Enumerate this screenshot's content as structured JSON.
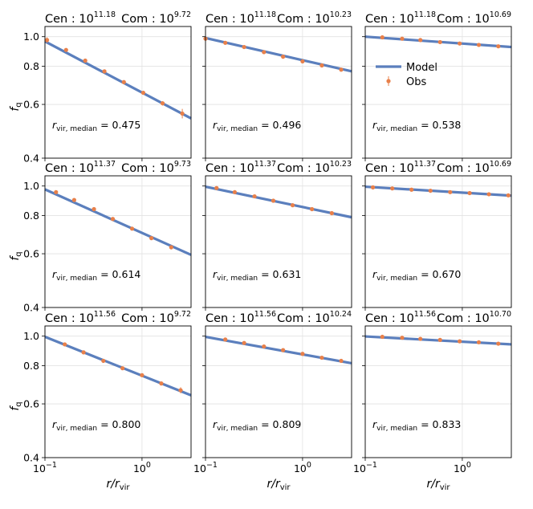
{
  "chart_data": {
    "type": "scatter",
    "layout": {
      "rows": 3,
      "cols": 3
    },
    "xscale": "log",
    "yscale": "log",
    "xlim": [
      0.1,
      3.2
    ],
    "ylim": [
      0.4,
      1.08
    ],
    "xticks": [
      {
        "value": 0.1,
        "label": "10",
        "sup": "−1"
      },
      {
        "value": 1,
        "label": "10",
        "sup": "0"
      }
    ],
    "yticks": [
      {
        "value": 0.4,
        "label": "0.4"
      },
      {
        "value": 0.6,
        "label": "0.6"
      },
      {
        "value": 0.8,
        "label": "0.8"
      },
      {
        "value": 1.0,
        "label": "1.0"
      }
    ],
    "xlabel": {
      "main": "r/r",
      "sub": "vir"
    },
    "ylabel": {
      "main": "f",
      "sub": "q"
    },
    "colors": {
      "model": "#5b7fbd",
      "obs": "#e8804a"
    },
    "legend": {
      "position": "upper-right of top-right panel",
      "model_label": "Model",
      "obs_label": "Obs"
    },
    "panels": [
      {
        "cen_label": "Cen : 10",
        "cen_exp": "11.18",
        "com_label": "Com : 10",
        "com_exp": "9.72",
        "ann_label": "r",
        "ann_sub": "vir, median",
        "ann_value": " = 0.475",
        "model": [
          [
            0.1,
            0.965
          ],
          [
            3.2,
            0.54
          ]
        ],
        "obs": {
          "x": [
            0.105,
            0.165,
            0.26,
            0.41,
            0.65,
            1.03,
            1.63,
            2.6
          ],
          "y": [
            0.975,
            0.905,
            0.835,
            0.77,
            0.71,
            0.655,
            0.605,
            0.56
          ],
          "err": [
            0.02,
            0.01,
            0.01,
            0.01,
            0.01,
            0.01,
            0.01,
            0.02
          ]
        }
      },
      {
        "cen_label": "Cen : 10",
        "cen_exp": "11.18",
        "com_label": "Com : 10",
        "com_exp": "10.23",
        "ann_label": "r",
        "ann_sub": "vir, median",
        "ann_value": " = 0.496",
        "model": [
          [
            0.1,
            0.99
          ],
          [
            3.2,
            0.77
          ]
        ],
        "obs": {
          "x": [
            0.1,
            0.16,
            0.25,
            0.4,
            0.63,
            1.0,
            1.58,
            2.5
          ],
          "y": [
            0.985,
            0.955,
            0.925,
            0.89,
            0.86,
            0.83,
            0.805,
            0.78
          ],
          "err": [
            0.008,
            0.008,
            0.006,
            0.006,
            0.006,
            0.006,
            0.006,
            0.008
          ]
        }
      },
      {
        "cen_label": "Cen : 10",
        "cen_exp": "11.18",
        "com_label": "Com : 10",
        "com_exp": "10.69",
        "ann_label": "r",
        "ann_sub": "vir, median",
        "ann_value": " = 0.538",
        "model": [
          [
            0.1,
            1.0
          ],
          [
            3.2,
            0.925
          ]
        ],
        "obs": {
          "x": [
            0.15,
            0.24,
            0.37,
            0.59,
            0.94,
            1.48,
            2.35
          ],
          "y": [
            0.995,
            0.985,
            0.975,
            0.96,
            0.95,
            0.94,
            0.93
          ],
          "err": [
            0.006,
            0.005,
            0.005,
            0.005,
            0.005,
            0.005,
            0.006
          ]
        }
      },
      {
        "cen_label": "Cen : 10",
        "cen_exp": "11.37",
        "com_label": "Com : 10",
        "com_exp": "9.73",
        "ann_label": "r",
        "ann_sub": "vir, median",
        "ann_value": " = 0.614",
        "model": [
          [
            0.1,
            0.975
          ],
          [
            3.2,
            0.595
          ]
        ],
        "obs": {
          "x": [
            0.13,
            0.2,
            0.32,
            0.5,
            0.79,
            1.25,
            2.0
          ],
          "y": [
            0.955,
            0.9,
            0.84,
            0.78,
            0.725,
            0.675,
            0.63
          ],
          "err": [
            0.008,
            0.007,
            0.007,
            0.007,
            0.007,
            0.007,
            0.01
          ]
        }
      },
      {
        "cen_label": "Cen : 10",
        "cen_exp": "11.37",
        "com_label": "Com : 10",
        "com_exp": "10.23",
        "ann_label": "r",
        "ann_sub": "vir, median",
        "ann_value": " = 0.631",
        "model": [
          [
            0.1,
            0.995
          ],
          [
            3.2,
            0.79
          ]
        ],
        "obs": {
          "x": [
            0.13,
            0.2,
            0.32,
            0.5,
            0.79,
            1.25,
            2.0
          ],
          "y": [
            0.985,
            0.955,
            0.925,
            0.895,
            0.865,
            0.84,
            0.815
          ],
          "err": [
            0.006,
            0.005,
            0.005,
            0.005,
            0.005,
            0.005,
            0.006
          ]
        }
      },
      {
        "cen_label": "Cen : 10",
        "cen_exp": "11.37",
        "com_label": "Com : 10",
        "com_exp": "10.69",
        "ann_label": "r",
        "ann_sub": "vir, median",
        "ann_value": " = 0.670",
        "model": [
          [
            0.1,
            0.995
          ],
          [
            3.2,
            0.93
          ]
        ],
        "obs": {
          "x": [
            0.12,
            0.19,
            0.3,
            0.47,
            0.75,
            1.19,
            1.88,
            2.98
          ],
          "y": [
            0.99,
            0.982,
            0.973,
            0.965,
            0.955,
            0.948,
            0.94,
            0.932
          ],
          "err": [
            0.005,
            0.005,
            0.004,
            0.004,
            0.004,
            0.004,
            0.005,
            0.005
          ]
        }
      },
      {
        "cen_label": "Cen : 10",
        "cen_exp": "11.56",
        "com_label": "Com : 10",
        "com_exp": "9.72",
        "ann_label": "r",
        "ann_sub": "vir, median",
        "ann_value": " = 0.800",
        "model": [
          [
            0.1,
            0.995
          ],
          [
            3.2,
            0.64
          ]
        ],
        "obs": {
          "x": [
            0.16,
            0.25,
            0.4,
            0.63,
            1.0,
            1.58,
            2.5
          ],
          "y": [
            0.94,
            0.885,
            0.83,
            0.785,
            0.745,
            0.7,
            0.665
          ],
          "err": [
            0.008,
            0.007,
            0.007,
            0.007,
            0.007,
            0.01,
            0.015
          ]
        }
      },
      {
        "cen_label": "Cen : 10",
        "cen_exp": "11.56",
        "com_label": "Com : 10",
        "com_exp": "10.24",
        "ann_label": "r",
        "ann_sub": "vir, median",
        "ann_value": " = 0.809",
        "model": [
          [
            0.1,
            0.995
          ],
          [
            3.2,
            0.815
          ]
        ],
        "obs": {
          "x": [
            0.16,
            0.25,
            0.4,
            0.63,
            1.0,
            1.58,
            2.5
          ],
          "y": [
            0.975,
            0.95,
            0.925,
            0.9,
            0.875,
            0.85,
            0.83
          ],
          "err": [
            0.005,
            0.005,
            0.005,
            0.005,
            0.005,
            0.005,
            0.006
          ]
        }
      },
      {
        "cen_label": "Cen : 10",
        "cen_exp": "11.56",
        "com_label": "Com : 10",
        "com_exp": "10.70",
        "ann_label": "r",
        "ann_sub": "vir, median",
        "ann_value": " = 0.833",
        "model": [
          [
            0.1,
            0.998
          ],
          [
            3.2,
            0.94
          ]
        ],
        "obs": {
          "x": [
            0.15,
            0.24,
            0.37,
            0.59,
            0.94,
            1.48,
            2.35
          ],
          "y": [
            0.995,
            0.988,
            0.98,
            0.972,
            0.962,
            0.955,
            0.945
          ],
          "err": [
            0.005,
            0.004,
            0.004,
            0.004,
            0.004,
            0.004,
            0.006
          ]
        }
      }
    ]
  }
}
